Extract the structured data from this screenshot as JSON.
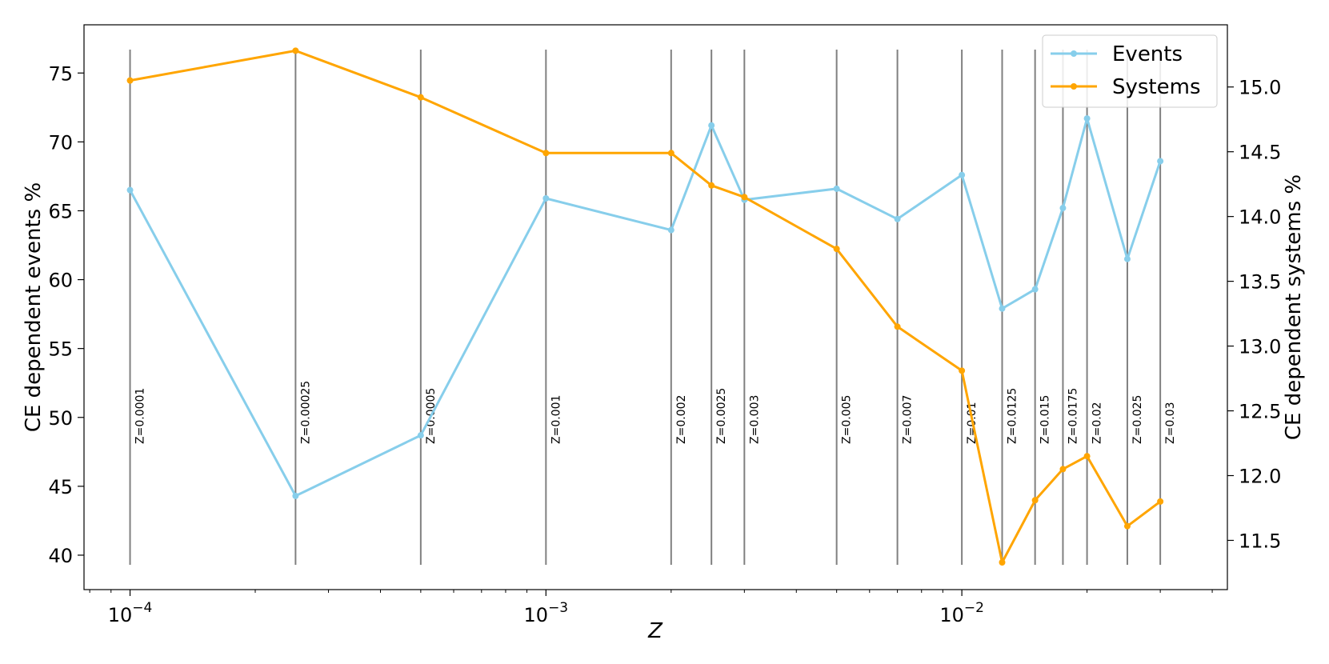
{
  "chart_data": {
    "type": "line",
    "x_scale": "log",
    "x": [
      0.0001,
      0.00025,
      0.0005,
      0.001,
      0.002,
      0.0025,
      0.003,
      0.005,
      0.007,
      0.01,
      0.0125,
      0.015,
      0.0175,
      0.02,
      0.025,
      0.03
    ],
    "xlabel": "Z",
    "xlim": [
      7.75e-05,
      0.0435
    ],
    "xticks": [
      {
        "value": 0.0001,
        "base": "10",
        "exp": "−4"
      },
      {
        "value": 0.001,
        "base": "10",
        "exp": "−3"
      },
      {
        "value": 0.01,
        "base": "10",
        "exp": "−2"
      }
    ],
    "series": [
      {
        "name": "Events",
        "axis": "left",
        "color": "#87CEEB",
        "values": [
          66.5,
          44.3,
          48.7,
          65.9,
          63.6,
          71.2,
          65.8,
          66.6,
          64.4,
          67.6,
          57.9,
          59.3,
          65.2,
          71.7,
          61.5,
          68.6
        ]
      },
      {
        "name": "Systems",
        "axis": "right",
        "color": "#FFA500",
        "values": [
          15.05,
          15.28,
          14.92,
          14.49,
          14.49,
          14.24,
          14.15,
          13.75,
          13.15,
          12.81,
          11.33,
          11.81,
          12.05,
          12.15,
          11.61,
          11.8
        ]
      }
    ],
    "ylabel_left": "CE dependent events %",
    "ylim_left": [
      37.5,
      78.5
    ],
    "yticks_left": [
      40,
      45,
      50,
      55,
      60,
      65,
      70,
      75
    ],
    "ylabel_right": "CE dependent systems %",
    "ylim_right": [
      11.12,
      15.48
    ],
    "yticks_right": [
      "11.5",
      "12.0",
      "12.5",
      "13.0",
      "13.5",
      "14.0",
      "14.5",
      "15.0"
    ],
    "vlines": [
      {
        "x": 0.0001,
        "label": "Z=0.0001"
      },
      {
        "x": 0.00025,
        "label": "Z=0.00025"
      },
      {
        "x": 0.0005,
        "label": "Z=0.0005"
      },
      {
        "x": 0.001,
        "label": "Z=0.001"
      },
      {
        "x": 0.002,
        "label": "Z=0.002"
      },
      {
        "x": 0.0025,
        "label": "Z=0.0025"
      },
      {
        "x": 0.003,
        "label": "Z=0.003"
      },
      {
        "x": 0.005,
        "label": "Z=0.005"
      },
      {
        "x": 0.007,
        "label": "Z=0.007"
      },
      {
        "x": 0.01,
        "label": "Z=0.01"
      },
      {
        "x": 0.0125,
        "label": "Z=0.0125"
      },
      {
        "x": 0.015,
        "label": "Z=0.015"
      },
      {
        "x": 0.0175,
        "label": "Z=0.0175"
      },
      {
        "x": 0.02,
        "label": "Z=0.02"
      },
      {
        "x": 0.025,
        "label": "Z=0.025"
      },
      {
        "x": 0.03,
        "label": "Z=0.03"
      }
    ],
    "vline_color": "#808080",
    "legend_position": "top-right",
    "grid": false
  }
}
